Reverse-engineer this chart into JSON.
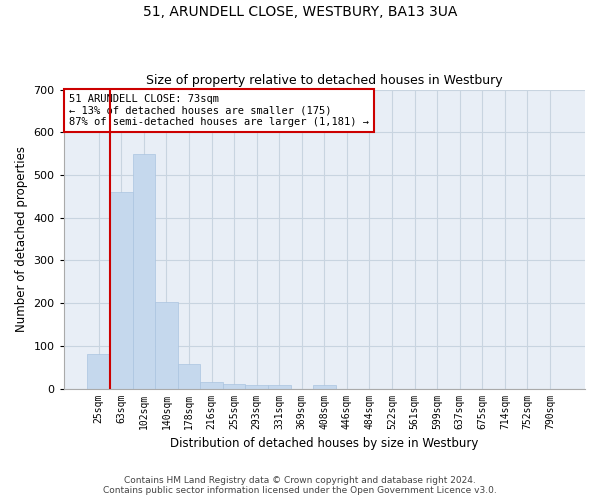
{
  "title": "51, ARUNDELL CLOSE, WESTBURY, BA13 3UA",
  "subtitle": "Size of property relative to detached houses in Westbury",
  "xlabel": "Distribution of detached houses by size in Westbury",
  "ylabel": "Number of detached properties",
  "footer": "Contains HM Land Registry data © Crown copyright and database right 2024.\nContains public sector information licensed under the Open Government Licence v3.0.",
  "categories": [
    "25sqm",
    "63sqm",
    "102sqm",
    "140sqm",
    "178sqm",
    "216sqm",
    "255sqm",
    "293sqm",
    "331sqm",
    "369sqm",
    "408sqm",
    "446sqm",
    "484sqm",
    "522sqm",
    "561sqm",
    "599sqm",
    "637sqm",
    "675sqm",
    "714sqm",
    "752sqm",
    "790sqm"
  ],
  "values": [
    80,
    460,
    548,
    203,
    58,
    15,
    10,
    9,
    9,
    0,
    8,
    0,
    0,
    0,
    0,
    0,
    0,
    0,
    0,
    0,
    0
  ],
  "bar_color": "#c5d8ed",
  "bar_edge_color": "#aac4e0",
  "grid_color": "#c8d4e0",
  "bg_color": "#e8eef6",
  "vline_x": 0.5,
  "vline_color": "#cc0000",
  "annotation_text": "51 ARUNDELL CLOSE: 73sqm\n← 13% of detached houses are smaller (175)\n87% of semi-detached houses are larger (1,181) →",
  "annotation_box_color": "#cc0000",
  "ylim": [
    0,
    700
  ],
  "yticks": [
    0,
    100,
    200,
    300,
    400,
    500,
    600,
    700
  ]
}
